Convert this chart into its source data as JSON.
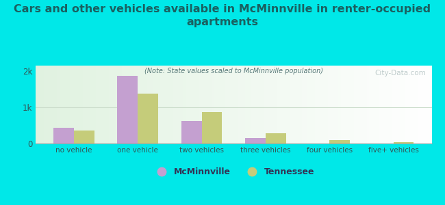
{
  "title": "Cars and other vehicles available in McMinnville in renter-occupied\napartments",
  "subtitle": "(Note: State values scaled to McMinnville population)",
  "categories": [
    "no vehicle",
    "one vehicle",
    "two vehicles",
    "three vehicles",
    "four vehicles",
    "five+ vehicles"
  ],
  "mcminnville": [
    430,
    1870,
    620,
    160,
    8,
    0
  ],
  "tennessee": [
    360,
    1370,
    870,
    280,
    95,
    30
  ],
  "bar_color_mc": "#c4a0d0",
  "bar_color_tn": "#c5cc7a",
  "background_color": "#00e8e8",
  "yticks": [
    0,
    1000,
    2000
  ],
  "ytick_labels": [
    "0",
    "1k",
    "2k"
  ],
  "ylim": [
    0,
    2150
  ],
  "legend_mc": "McMinnville",
  "legend_tn": "Tennessee",
  "watermark": "City-Data.com",
  "title_color": "#1a6060",
  "subtitle_color": "#557777",
  "tick_color": "#335555",
  "bar_width": 0.32
}
